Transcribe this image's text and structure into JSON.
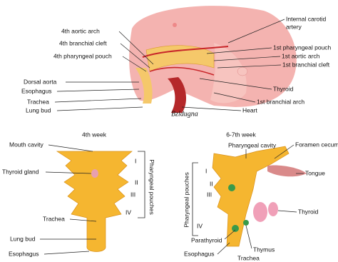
{
  "top": {
    "labels_left": [
      "4th aortic arch",
      "4th branchial cleft",
      "4th pharyngeal pouch",
      "Dorsal aorta",
      "Esophagus",
      "Trachea",
      "Lung bud"
    ],
    "labels_right": [
      "Internal carotid",
      "artery",
      "1st pharyngeal pouch",
      "1st aortic arch",
      "1st branchial cleft",
      "Thyroid",
      "1st branchial arch",
      "Heart"
    ],
    "signature": "Bzldugna"
  },
  "week4": {
    "title": "4th week",
    "labels": [
      "Mouth cavity",
      "Thyroid gland",
      "Trachea",
      "Lung bud",
      "Esophagus"
    ],
    "pouches": [
      "I",
      "II",
      "III",
      "IV"
    ],
    "bracket": "Pharyngeal pouches"
  },
  "week6": {
    "title": "6-7th week",
    "labels": [
      "Pharyngeal cavity",
      "Foramen cecum",
      "Tongue",
      "Thyroid",
      "Parathyroid",
      "Esophagus",
      "Thymus",
      "Trachea"
    ],
    "pouches": [
      "I",
      "II",
      "III",
      "IV"
    ],
    "bracket": "Pharyngeal pouches"
  }
}
